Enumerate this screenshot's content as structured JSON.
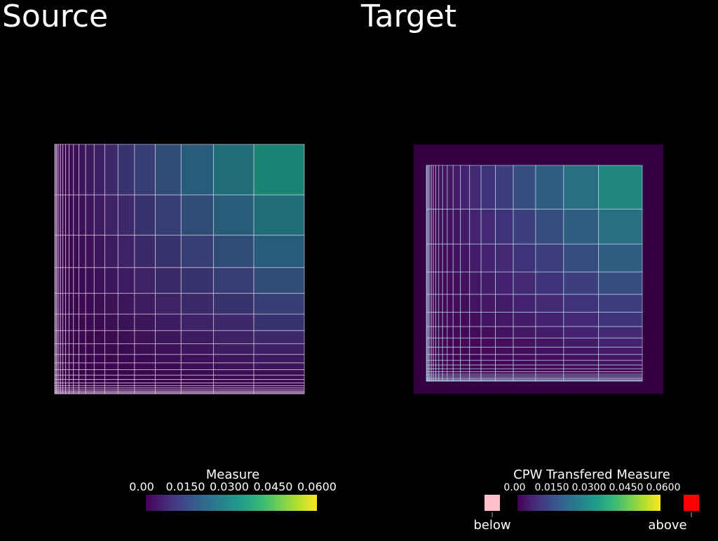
{
  "panels": [
    {
      "title": "Source",
      "colorbar": {
        "title": "Measure",
        "ticks": [
          "0.00",
          "0.0150",
          "0.0300",
          "0.0450",
          "0.0600"
        ]
      }
    },
    {
      "title": "Target",
      "colorbar": {
        "title": "CPW Transfered Measure",
        "ticks": [
          "0.00",
          "0.0150",
          "0.0300",
          "0.0450",
          "0.0600"
        ],
        "below": "below",
        "above": "above"
      }
    }
  ]
}
